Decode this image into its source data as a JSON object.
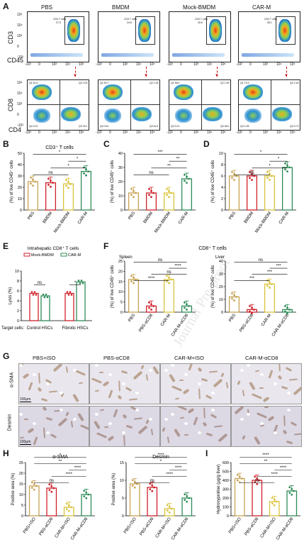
{
  "panels": {
    "A": "A",
    "B": "B",
    "C": "C",
    "D": "D",
    "E": "E",
    "F": "F",
    "G": "G",
    "H": "H",
    "I": "I"
  },
  "groups": [
    "PBS",
    "BMDM",
    "Mock-BMDM",
    "CAR-M"
  ],
  "panelA": {
    "top_ylabel": "CD3",
    "top_xlabel": "CD45",
    "bottom_ylabel": "CD8",
    "bottom_xlabel": "CD4",
    "gate_labels": [
      "CD3 T cells",
      "CD3 T cells",
      "CD3 T cells",
      "CD3 T cells"
    ],
    "gate_values": [
      "27.5",
      "24.6",
      "26.6",
      "35.1"
    ],
    "quadrants": [
      {
        "q1": "Q1 61.6",
        "q2": "Q2 2.09",
        "q3": "Q3 33.1",
        "q4": "Q4 3.21"
      },
      {
        "q1": "Q1 53.7",
        "q2": "Q2 1.28",
        "q3": "Q3 44.4",
        "q4": "Q4 0.61"
      },
      {
        "q1": "Q1 58.4",
        "q2": "Q2 2.39",
        "q3": "Q3 36.0",
        "q4": "Q4 3.21"
      },
      {
        "q1": "Q1 79.3",
        "q2": "Q2 2.18",
        "q3": "Q3 17.5",
        "q4": "Q4 1.06"
      }
    ],
    "x_ticks": [
      "-10³",
      "0",
      "10³",
      "10⁴",
      "10⁵"
    ],
    "y_ticks_top": [
      "10⁵",
      "10⁴",
      "10³",
      "0",
      "-10³"
    ],
    "y_ticks_bottom": [
      "10⁵",
      "10⁴",
      "10³",
      "0",
      "-10³"
    ]
  },
  "panelB": {
    "title": "CD3⁺ T cells",
    "ylabel": "(%) of live CD45⁺ cells",
    "yticks": [
      "0",
      "10",
      "20",
      "30",
      "40",
      "50"
    ],
    "sig": [
      "ns",
      "*",
      "*",
      "*"
    ]
  },
  "panelC": {
    "ylabel": "(%) of live CD45⁺ cells",
    "yticks": [
      "0",
      "10",
      "20",
      "30",
      "40"
    ],
    "sig": [
      "ns",
      "**",
      "**",
      "***"
    ]
  },
  "panelD": {
    "ylabel": "(%) of live CD45⁺ cells",
    "yticks": [
      "0",
      "2",
      "4",
      "6",
      "8",
      "10"
    ],
    "sig": [
      "ns",
      "*",
      "*",
      "*"
    ]
  },
  "panelE": {
    "title": "Intrahepatic CD8⁺ T cells",
    "legend": [
      "Mock-BMDM",
      "CAR-M"
    ],
    "ylabel": "Lysis (%)",
    "yticks": [
      "0",
      "2",
      "4",
      "6",
      "8",
      "10"
    ],
    "sig": [
      "ns",
      "*"
    ],
    "target_label": "Target cells:",
    "xcats": [
      "Control HSCs",
      "Fibrotic HSCs"
    ]
  },
  "panelF": {
    "title": "CD8⁺ T cells",
    "sub": [
      "Spleen",
      "Liver"
    ],
    "ylabel": "(%) of live CD45⁺ cells",
    "yticks_spleen": [
      "0",
      "5",
      "10",
      "15",
      "20",
      "25"
    ],
    "yticks_liver": [
      "0",
      "10",
      "20",
      "30",
      "40"
    ],
    "groups": [
      "PBS",
      "PBS-αCD8",
      "CAR-M",
      "CAR-M-αCD8"
    ],
    "sig_spleen": [
      "****",
      "ns",
      "****",
      "ns"
    ],
    "sig_liver": [
      "***",
      "***",
      "***",
      "ns"
    ]
  },
  "panelG": {
    "cols": [
      "PBS+ISO",
      "PBS-αCD8",
      "CAR-M+ISO",
      "CAR-M-αCD8"
    ],
    "rows": [
      "α-SMA",
      "Desmin"
    ],
    "scale": "100μm"
  },
  "panelH": {
    "titles": [
      "α-SMA",
      "Desmin"
    ],
    "ylabel": "Positive area (%)",
    "yticks": [
      "0",
      "5",
      "10",
      "15",
      "20",
      "25"
    ],
    "groups": [
      "PBS+ISO",
      "PBS-αCD8",
      "CAR-M+ISO",
      "CAR-M-αCD8"
    ],
    "sig_sma": [
      "ns",
      "****",
      "****",
      "**",
      "*"
    ],
    "sig_des": [
      "ns",
      "****",
      "****",
      "*",
      "****"
    ]
  },
  "panelI": {
    "ylabel": "Hydroxyproline (μg/g liver)",
    "yticks": [
      "0",
      "100",
      "200",
      "300",
      "400",
      "500",
      "600"
    ],
    "groups": [
      "PBS+ISO",
      "PBS-αCD8",
      "CAR-M+ISO",
      "CAR-M-αCD8"
    ],
    "sig": [
      "ns",
      "****",
      "****",
      "**",
      "****"
    ]
  },
  "watermark": "Journal Pre-proof",
  "colors": {
    "pbs": "#c8a253",
    "bmdm": "#d0202a",
    "mock": "#d9c23a",
    "carm": "#2e8b57",
    "pbsacd8": "#d0202a",
    "carmiso": "#d9c23a",
    "carmacd8": "#2e8b57"
  },
  "chart_data": [
    {
      "panel": "B",
      "type": "bar",
      "categories": [
        "PBS",
        "BMDM",
        "Mock-BMDM",
        "CAR-M"
      ],
      "values": [
        25,
        24,
        23,
        34
      ],
      "title": "CD3⁺ T cells",
      "ylabel": "(%) of live CD45⁺ cells",
      "ylim": [
        0,
        50
      ]
    },
    {
      "panel": "C",
      "type": "bar",
      "categories": [
        "PBS",
        "BMDM",
        "Mock-BMDM",
        "CAR-M"
      ],
      "values": [
        12,
        12,
        12,
        22
      ],
      "ylabel": "(%) of live CD45⁺ cells",
      "ylim": [
        0,
        40
      ]
    },
    {
      "panel": "D",
      "type": "bar",
      "categories": [
        "PBS",
        "BMDM",
        "Mock-BMDM",
        "CAR-M"
      ],
      "values": [
        6,
        6,
        6,
        7.5
      ],
      "ylabel": "(%) of live CD45⁺ cells",
      "ylim": [
        0,
        10
      ]
    },
    {
      "panel": "E",
      "type": "bar",
      "categories": [
        "Control HSCs",
        "Fibrotic HSCs"
      ],
      "series": [
        {
          "name": "Mock-BMDM",
          "values": [
            5.5,
            5.5
          ]
        },
        {
          "name": "CAR-M",
          "values": [
            5.0,
            7.8
          ]
        }
      ],
      "ylabel": "Lysis (%)",
      "ylim": [
        0,
        10
      ]
    },
    {
      "panel": "F-Spleen",
      "type": "bar",
      "categories": [
        "PBS",
        "PBS-αCD8",
        "CAR-M",
        "CAR-M-αCD8"
      ],
      "values": [
        16,
        3,
        16,
        3
      ],
      "ylabel": "(%) of live CD45⁺ cells",
      "ylim": [
        0,
        25
      ]
    },
    {
      "panel": "F-Liver",
      "type": "bar",
      "categories": [
        "PBS",
        "PBS-αCD8",
        "CAR-M",
        "CAR-M-αCD8"
      ],
      "values": [
        12,
        2,
        22,
        2
      ],
      "ylim": [
        0,
        40
      ]
    },
    {
      "panel": "H-α-SMA",
      "type": "bar",
      "categories": [
        "PBS+ISO",
        "PBS-αCD8",
        "CAR-M+ISO",
        "CAR-M-αCD8"
      ],
      "values": [
        14,
        13,
        4,
        10
      ],
      "title": "α-SMA",
      "ylabel": "Positive area (%)",
      "ylim": [
        0,
        25
      ]
    },
    {
      "panel": "H-Desmin",
      "type": "bar",
      "categories": [
        "PBS+ISO",
        "PBS-αCD8",
        "CAR-M+ISO",
        "CAR-M-αCD8"
      ],
      "values": [
        9,
        8,
        2,
        5
      ],
      "title": "Desmin",
      "ylabel": "Positive area (%)",
      "ylim": [
        0,
        15
      ]
    },
    {
      "panel": "I",
      "type": "bar",
      "categories": [
        "PBS+ISO",
        "PBS-αCD8",
        "CAR-M+ISO",
        "CAR-M-αCD8"
      ],
      "values": [
        420,
        400,
        160,
        280
      ],
      "ylabel": "Hydroxyproline (μg/g liver)",
      "ylim": [
        0,
        600
      ]
    }
  ]
}
